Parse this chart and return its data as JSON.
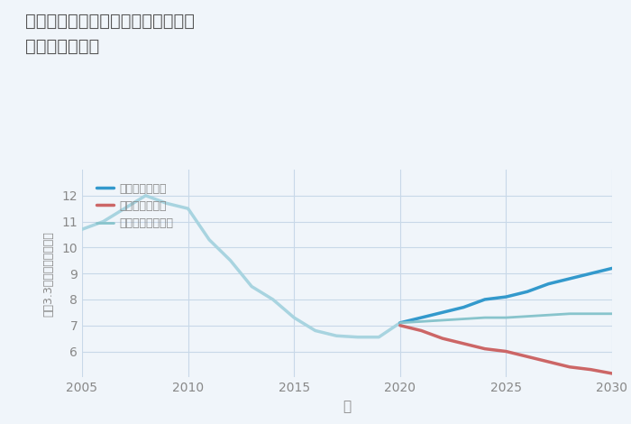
{
  "title_line1": "三重県いなべ市藤原町志礼石新田の",
  "title_line2": "土地の価格推移",
  "xlabel": "年",
  "ylabel": "坪（3.3㎡）単価（万円）",
  "background_color": "#f0f5fa",
  "plot_bg_color": "#f0f5fa",
  "ylim": [
    5,
    13
  ],
  "xlim": [
    2005,
    2030
  ],
  "yticks": [
    6,
    7,
    8,
    9,
    10,
    11,
    12
  ],
  "xticks": [
    2005,
    2010,
    2015,
    2020,
    2025,
    2030
  ],
  "historical": {
    "years": [
      2005,
      2006,
      2007,
      2008,
      2009,
      2010,
      2011,
      2012,
      2013,
      2014,
      2015,
      2016,
      2017,
      2018,
      2019,
      2020
    ],
    "values": [
      10.7,
      11.0,
      11.5,
      12.0,
      11.7,
      11.5,
      10.3,
      9.5,
      8.5,
      8.0,
      7.3,
      6.8,
      6.6,
      6.55,
      6.55,
      7.1
    ],
    "color": "#a8d4e0",
    "linewidth": 2.5
  },
  "good": {
    "years": [
      2020,
      2021,
      2022,
      2023,
      2024,
      2025,
      2026,
      2027,
      2028,
      2029,
      2030
    ],
    "values": [
      7.1,
      7.3,
      7.5,
      7.7,
      8.0,
      8.1,
      8.3,
      8.6,
      8.8,
      9.0,
      9.2
    ],
    "color": "#3399cc",
    "linewidth": 2.5,
    "label": "グッドシナリオ"
  },
  "bad": {
    "years": [
      2020,
      2021,
      2022,
      2023,
      2024,
      2025,
      2026,
      2027,
      2028,
      2029,
      2030
    ],
    "values": [
      7.0,
      6.8,
      6.5,
      6.3,
      6.1,
      6.0,
      5.8,
      5.6,
      5.4,
      5.3,
      5.15
    ],
    "color": "#cc6666",
    "linewidth": 2.5,
    "label": "バッドシナリオ"
  },
  "normal": {
    "years": [
      2020,
      2021,
      2022,
      2023,
      2024,
      2025,
      2026,
      2027,
      2028,
      2029,
      2030
    ],
    "values": [
      7.1,
      7.15,
      7.2,
      7.25,
      7.3,
      7.3,
      7.35,
      7.4,
      7.45,
      7.45,
      7.45
    ],
    "color": "#88c4cc",
    "linewidth": 2.0,
    "label": "ノーマルシナリオ"
  },
  "grid_color": "#c8d8e8",
  "title_color": "#555555",
  "tick_color": "#888888",
  "label_color": "#888888"
}
